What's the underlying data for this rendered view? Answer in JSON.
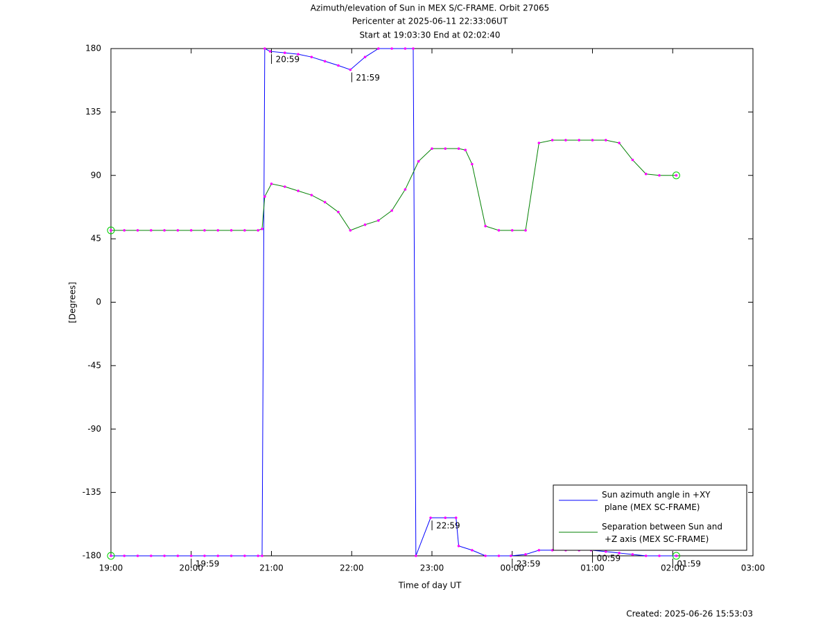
{
  "chart_data": {
    "type": "line",
    "title": [
      "Azimuth/elevation of Sun in MEX S/C-FRAME.  Orbit 27065",
      "Pericenter at 2025-06-11 22:33:06UT",
      "Start at 19:03:30 End at 02:02:40"
    ],
    "xlabel": "Time of day UT",
    "ylabel": "[Degrees]",
    "xlim": [
      "19:00",
      "03:00"
    ],
    "xticks": [
      "19:00",
      "20:00",
      "21:00",
      "22:00",
      "23:00",
      "00:00",
      "01:00",
      "02:00",
      "03:00"
    ],
    "ylim": [
      -180,
      180
    ],
    "yticks": [
      180,
      135,
      90,
      45,
      0,
      -45,
      -90,
      -135,
      -180
    ],
    "grid": false,
    "legend": "lower right",
    "marker_color": "#ff00ff",
    "series": [
      {
        "name": "Sun azimuth angle in +XY plane (MEX SC-FRAME)",
        "color": "#0000ff",
        "x": [
          "19:00",
          "19:10",
          "19:20",
          "19:30",
          "19:40",
          "19:50",
          "20:00",
          "20:10",
          "20:20",
          "20:30",
          "20:40",
          "20:50",
          "20:53",
          "20:55",
          "20:59",
          "21:10",
          "21:20",
          "21:30",
          "21:40",
          "21:50",
          "21:59",
          "22:10",
          "22:20",
          "22:30",
          "22:40",
          "22:46",
          "22:48",
          "22:59",
          "23:10",
          "23:18",
          "23:20",
          "23:30",
          "23:40",
          "23:50",
          "23:59",
          "00:10",
          "00:20",
          "00:30",
          "00:40",
          "00:50",
          "00:59",
          "01:10",
          "01:20",
          "01:30",
          "01:40",
          "01:50",
          "02:02:40"
        ],
        "values": [
          -180,
          -180,
          -180,
          -180,
          -180,
          -180,
          -180,
          -180,
          -180,
          -180,
          -180,
          -180,
          -180,
          180,
          178,
          177,
          176,
          174,
          171,
          168,
          165,
          174,
          180,
          180,
          180,
          180,
          -180,
          -153,
          -153,
          -153,
          -173,
          -176,
          -180,
          -180,
          -180,
          -179,
          -176,
          -176,
          -176,
          -176,
          -176,
          -177,
          -178,
          -179,
          -180,
          -180,
          -180
        ]
      },
      {
        "name": "Separation between Sun and +Z axis (MEX SC-FRAME)",
        "color": "#008000",
        "x": [
          "19:00",
          "19:10",
          "19:20",
          "19:30",
          "19:40",
          "19:50",
          "20:00",
          "20:10",
          "20:20",
          "20:30",
          "20:40",
          "20:50",
          "20:53",
          "20:55",
          "21:00",
          "21:10",
          "21:20",
          "21:30",
          "21:40",
          "21:50",
          "21:59",
          "22:10",
          "22:20",
          "22:30",
          "22:40",
          "22:50",
          "23:00",
          "23:10",
          "23:20",
          "23:25",
          "23:30",
          "23:40",
          "23:50",
          "00:00",
          "00:10",
          "00:20",
          "00:30",
          "00:40",
          "00:50",
          "01:00",
          "01:10",
          "01:20",
          "01:30",
          "01:40",
          "01:50",
          "02:02:40"
        ],
        "values": [
          51,
          51,
          51,
          51,
          51,
          51,
          51,
          51,
          51,
          51,
          51,
          51,
          52,
          75,
          84,
          82,
          79,
          76,
          71,
          64,
          51,
          55,
          58,
          65,
          80,
          100,
          109,
          109,
          109,
          108,
          98,
          54,
          51,
          51,
          51,
          113,
          115,
          115,
          115,
          115,
          115,
          113,
          101,
          91,
          90,
          90
        ]
      }
    ],
    "annotations": [
      {
        "text": "19:59",
        "y": -180
      },
      {
        "text": "20:59",
        "y": 178
      },
      {
        "text": "21:59",
        "y": 165
      },
      {
        "text": "22:59",
        "y": -153
      },
      {
        "text": "23:59",
        "y": -180
      },
      {
        "text": "00:59",
        "y": -176
      },
      {
        "text": "01:59",
        "y": -180
      }
    ],
    "footer": "Created: 2025-06-26 15:53:03"
  }
}
